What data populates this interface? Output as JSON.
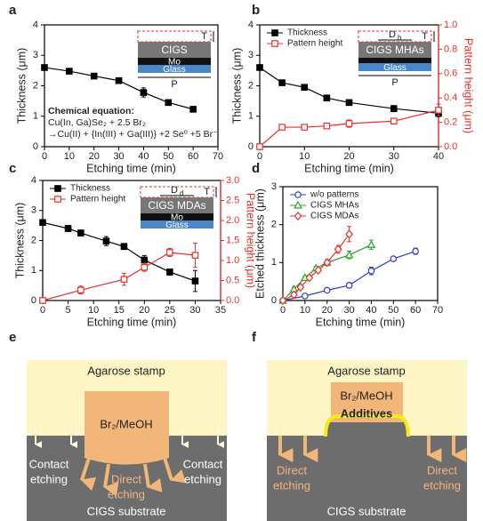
{
  "chart_data": [
    {
      "type": "line",
      "panel": "a",
      "xlabel": "Etching time (min)",
      "ylabel": "Thickness (μm)",
      "xlim": [
        0,
        70
      ],
      "xticks": [
        0,
        10,
        20,
        30,
        40,
        50,
        60,
        70
      ],
      "ylim": [
        0,
        4
      ],
      "yticks": [
        0,
        1,
        2,
        3,
        4
      ],
      "series": [
        {
          "color": "#000000",
          "marker": "square",
          "filled": true,
          "x": [
            0,
            10,
            20,
            30,
            40,
            50,
            60
          ],
          "values": [
            2.6,
            2.48,
            2.32,
            2.17,
            1.78,
            1.45,
            1.23
          ],
          "errors": [
            0.03,
            0.05,
            0.05,
            0.08,
            0.15,
            0.05,
            0.07
          ]
        }
      ],
      "annotation": [
        "Chemical equation:",
        "Cu(In, Ga)Se₂ + 2.5 Br₂",
        "→Cu(II) + {In(III) + Ga(III)} +2 Se⁰ +5 Br⁻"
      ],
      "inset": {
        "layers": [
          {
            "label": "CIGS",
            "color": "#777777"
          },
          {
            "label": "Mo",
            "color": "#111111"
          },
          {
            "label": "Glass",
            "color": "#4a86c8"
          }
        ],
        "T": "T",
        "P": "P"
      }
    },
    {
      "type": "line",
      "panel": "b",
      "xlabel": "Etching time (min)",
      "ylabel": "Thickness (μm)",
      "y2label": "Pattern height (μm)",
      "xlim": [
        0,
        40
      ],
      "xticks": [
        0,
        10,
        20,
        30,
        40
      ],
      "ylim": [
        0,
        4
      ],
      "yticks": [
        0,
        1,
        2,
        3,
        4
      ],
      "y2lim": [
        0,
        1.0
      ],
      "y2ticks": [
        {
          "value": 0,
          "label": "0.0"
        },
        0.2,
        0.4,
        0.6,
        0.8,
        {
          "value": 1,
          "label": "1.0"
        }
      ],
      "y2color": "#e8302b",
      "legend": "upper left",
      "series": [
        {
          "name": "Thickness",
          "color": "#000000",
          "marker": "square",
          "filled": true,
          "x": [
            0,
            5,
            10,
            15,
            20,
            30,
            40
          ],
          "values": [
            2.6,
            2.1,
            1.95,
            1.6,
            1.45,
            1.25,
            1.1
          ],
          "errors": [
            0.05,
            0.05,
            0.05,
            0.05,
            0.08,
            0.1,
            0.12
          ]
        },
        {
          "name": "Pattern height",
          "color": "#e8302b",
          "marker": "square",
          "filled": false,
          "axis": "y2",
          "x": [
            0,
            5,
            10,
            15,
            20,
            30,
            40
          ],
          "values": [
            0,
            0.16,
            0.16,
            0.17,
            0.19,
            0.21,
            0.3
          ],
          "errors": [
            0,
            0.02,
            0.02,
            0.02,
            0.03,
            0.02,
            0.05
          ]
        }
      ],
      "inset": {
        "layers": [
          {
            "label": "CIGS MHAs",
            "color": "#777777"
          },
          {
            "color": "#111111"
          },
          {
            "label": "Glass",
            "color": "#4a86c8"
          }
        ],
        "T": "T",
        "D": {
          "main": "D",
          "sub": "h"
        },
        "P": "P"
      }
    },
    {
      "type": "line",
      "panel": "c",
      "xlabel": "Etching time (min)",
      "ylabel": "Thickness (μm)",
      "y2label": "Pattern height (μm)",
      "xlim": [
        0,
        35
      ],
      "xticks": [
        0,
        5,
        10,
        15,
        20,
        25,
        30,
        35
      ],
      "ylim": [
        0,
        4
      ],
      "yticks": [
        0,
        1,
        2,
        3,
        4
      ],
      "y2lim": [
        0,
        3.0
      ],
      "y2ticks": [
        {
          "value": 0,
          "label": "0.0"
        },
        0.5,
        {
          "value": 1,
          "label": "1.0"
        },
        1.5,
        {
          "value": 2,
          "label": "2.0"
        },
        2.5,
        {
          "value": 3,
          "label": "3.0"
        }
      ],
      "y2color": "#e8302b",
      "legend": "upper left",
      "series": [
        {
          "name": "Thickness",
          "color": "#000000",
          "marker": "square",
          "filled": true,
          "x": [
            0,
            5,
            7.5,
            12.5,
            16,
            20,
            25,
            30
          ],
          "values": [
            2.6,
            2.4,
            2.25,
            1.98,
            1.8,
            1.35,
            0.95,
            0.65
          ],
          "errors": [
            0.05,
            0.1,
            0.1,
            0.15,
            0.1,
            0.15,
            0.1,
            0.35
          ]
        },
        {
          "name": "Pattern height",
          "color": "#e8302b",
          "marker": "square",
          "filled": false,
          "axis": "y2",
          "x": [
            0,
            7.5,
            16,
            20,
            25,
            30
          ],
          "values": [
            0,
            0.26,
            0.53,
            0.83,
            1.2,
            1.13
          ],
          "errors": [
            0,
            0.1,
            0.15,
            0.1,
            0.1,
            0.3
          ]
        }
      ],
      "inset": {
        "layers": [
          {
            "label": "CIGS MDAs",
            "color": "#777777"
          },
          {
            "label": "Mo",
            "color": "#111111"
          },
          {
            "label": "Glass",
            "color": "#4a86c8"
          }
        ],
        "T": "T",
        "D": {
          "main": "D",
          "sub": "d"
        }
      }
    },
    {
      "type": "line",
      "panel": "d",
      "xlabel": "Etching time (min)",
      "ylabel": "Etched thickness (μm)",
      "xlim": [
        0,
        70
      ],
      "xticks": [
        0,
        10,
        20,
        30,
        40,
        50,
        60,
        70
      ],
      "ylim": [
        0,
        3
      ],
      "yticks": [
        0,
        1,
        2,
        3
      ],
      "legend": "upper left",
      "series": [
        {
          "name": "w/o patterns",
          "color": "#2a3bd0",
          "marker": "circle",
          "filled": false,
          "x": [
            0,
            10,
            20,
            30,
            40,
            50,
            60
          ],
          "values": [
            0,
            0.12,
            0.27,
            0.4,
            0.78,
            1.1,
            1.3
          ],
          "errors": [
            0,
            0.03,
            0.03,
            0.07,
            0.1,
            0.05,
            0.08
          ]
        },
        {
          "name": "CIGS MHAs",
          "color": "#2ca02c",
          "marker": "triangle",
          "filled": false,
          "x": [
            0,
            5,
            10,
            15,
            20,
            30,
            40
          ],
          "values": [
            0,
            0.3,
            0.6,
            0.85,
            1.0,
            1.2,
            1.47
          ],
          "errors": [
            0,
            0.05,
            0.05,
            0.05,
            0.05,
            0.1,
            0.12
          ]
        },
        {
          "name": "CIGS MDAs",
          "color": "#e8302b",
          "marker": "diamond",
          "filled": false,
          "x": [
            0,
            5,
            8,
            12,
            16,
            20,
            25,
            30
          ],
          "values": [
            0,
            0.15,
            0.35,
            0.6,
            0.8,
            1.0,
            1.35,
            1.75
          ],
          "errors": [
            0,
            0.05,
            0.05,
            0.05,
            0.05,
            0.08,
            0.1,
            0.2
          ]
        }
      ]
    }
  ],
  "diagrams": [
    {
      "panel": "e",
      "stamp": "Agarose stamp",
      "solution": "Br₂/MeOH",
      "contact_left": [
        "Contact",
        "etching"
      ],
      "direct": [
        "Direct",
        "etching"
      ],
      "contact_right": [
        "Contact",
        "etching"
      ],
      "substrate": "CIGS substrate"
    },
    {
      "panel": "f",
      "stamp": "Agarose stamp",
      "solution": "Br₂/MeOH",
      "additives": "Additives",
      "direct_left": [
        "Direct",
        "etching"
      ],
      "direct_right": [
        "Direct",
        "etching"
      ],
      "substrate": "CIGS substrate"
    }
  ]
}
